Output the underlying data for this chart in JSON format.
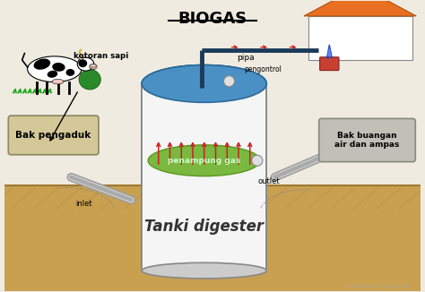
{
  "title": "BIOGAS",
  "title_fontsize": 13,
  "bg_color": "#f0ebe0",
  "tank_top_color": "#4a90c4",
  "tank_top_dark": "#2a6a9a",
  "tank_body_color": "#e8e8e8",
  "tank_outline_color": "#888888",
  "gas_collector_color": "#7ab840",
  "gas_collector_edge": "#5a9820",
  "pipe_color": "#1a3a5a",
  "arrow_color": "#cc2222",
  "ground_color": "#c8a050",
  "ground_line_color": "#a07830",
  "ground_hatch_color": "#b89040",
  "box_bak_pengaduk_color": "#d4c898",
  "box_bak_pengaduk_edge": "#888860",
  "box_bak_buangan_color": "#c0c0b8",
  "box_bak_buangan_edge": "#888880",
  "house_roof_color": "#e87020",
  "house_roof_edge": "#b05010",
  "house_wall_color": "#ffffff",
  "house_edge_color": "#888888",
  "stove_color": "#c84030",
  "flame_color_dark": "#2244cc",
  "flame_color_light": "#6688ff",
  "pipe_inlet_color": "#aaaaaa",
  "pipe_inlet_edge": "#777777",
  "ctrl_circle_color": "#e0e0e0",
  "ctrl_circle_edge": "#888888",
  "label_kotoran": "kotoran sapi",
  "label_bak_pengaduk": "Bak pengaduk",
  "label_pipa": "pipa",
  "label_pengontrol": "pengontrol",
  "label_penampung": "penampung gas",
  "label_outlet": "outlet",
  "label_inlet": "inlet",
  "label_bak_buangan": "Bak buangan\nair dan ampas",
  "label_tanki": "Tanki digester",
  "watermark": "Kompasiana.com/revoygator"
}
